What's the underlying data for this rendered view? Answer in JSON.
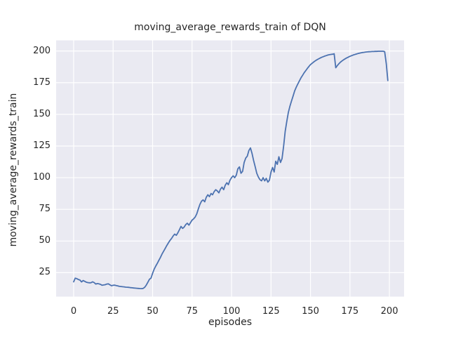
{
  "figure": {
    "background": "#FFFFFF",
    "axes_background": "#EAEAF2",
    "grid_color": "#FFFFFF",
    "text_color": "#262626"
  },
  "chart_data": {
    "type": "line",
    "title": "moving_average_rewards_train of DQN",
    "xlabel": "episodes",
    "ylabel": "moving_average_rewards_train",
    "x_ticks": [
      0,
      25,
      50,
      75,
      100,
      125,
      150,
      175,
      200
    ],
    "y_ticks": [
      25,
      50,
      75,
      100,
      125,
      150,
      175,
      200
    ],
    "xlim": [
      -11.1,
      209.3
    ],
    "ylim": [
      6.1,
      208.4
    ],
    "grid": true,
    "legend": false,
    "line_color": "#4C72B0",
    "series": [
      {
        "name": "moving_average_rewards_train",
        "x_start": 0,
        "x_step": 1,
        "values": [
          17.8,
          20.7,
          20.3,
          19.6,
          19.2,
          17.7,
          18.8,
          18.2,
          17.5,
          17.2,
          17.0,
          17.1,
          17.8,
          17.2,
          16.0,
          16.4,
          16.2,
          15.8,
          15.1,
          15.3,
          15.5,
          16.0,
          16.2,
          15.4,
          14.7,
          15.1,
          15.2,
          14.8,
          14.5,
          14.2,
          14.1,
          13.9,
          13.8,
          13.6,
          13.5,
          13.4,
          13.2,
          13.1,
          12.9,
          12.8,
          12.7,
          12.6,
          12.5,
          12.4,
          12.6,
          13.5,
          15.2,
          17.5,
          19.8,
          20.8,
          24.5,
          27.8,
          30.2,
          32.5,
          34.8,
          37.2,
          39.8,
          42.0,
          44.2,
          46.5,
          48.5,
          50.5,
          52.0,
          54.0,
          55.5,
          54.5,
          56.5,
          59.0,
          61.5,
          60.0,
          61.0,
          63.0,
          64.0,
          62.5,
          64.5,
          66.5,
          67.5,
          69.0,
          71.5,
          75.5,
          79.0,
          81.5,
          82.5,
          81.0,
          84.5,
          86.5,
          85.0,
          87.5,
          86.5,
          89.0,
          90.5,
          89.5,
          88.0,
          91.0,
          92.5,
          90.5,
          94.0,
          96.0,
          94.5,
          98.0,
          100.0,
          101.5,
          100.0,
          102.0,
          107.0,
          108.5,
          103.5,
          105.0,
          112.0,
          115.5,
          117.0,
          121.5,
          123.5,
          119.0,
          113.5,
          108.5,
          103.5,
          100.5,
          98.5,
          97.5,
          100.0,
          97.5,
          99.5,
          96.5,
          98.0,
          104.5,
          108.0,
          104.5,
          113.0,
          110.5,
          116.5,
          112.0,
          115.0,
          125.0,
          136.5,
          144.5,
          151.5,
          156.5,
          160.5,
          164.5,
          168.5,
          171.5,
          174.0,
          176.5,
          178.8,
          180.8,
          182.8,
          184.5,
          186.2,
          187.8,
          189.2,
          190.3,
          191.3,
          192.2,
          193.0,
          193.7,
          194.4,
          195.0,
          195.5,
          196.0,
          196.4,
          196.8,
          197.1,
          197.3,
          197.5,
          197.8,
          186.8,
          188.5,
          190.0,
          191.2,
          192.2,
          193.1,
          193.9,
          194.6,
          195.2,
          195.8,
          196.3,
          196.8,
          197.2,
          197.6,
          198.0,
          198.3,
          198.6,
          198.8,
          199.0,
          199.2,
          199.3,
          199.4,
          199.5,
          199.6,
          199.6,
          199.7,
          199.7,
          199.8,
          199.8,
          199.8,
          199.8,
          199.5,
          190.0,
          176.7
        ]
      }
    ]
  }
}
